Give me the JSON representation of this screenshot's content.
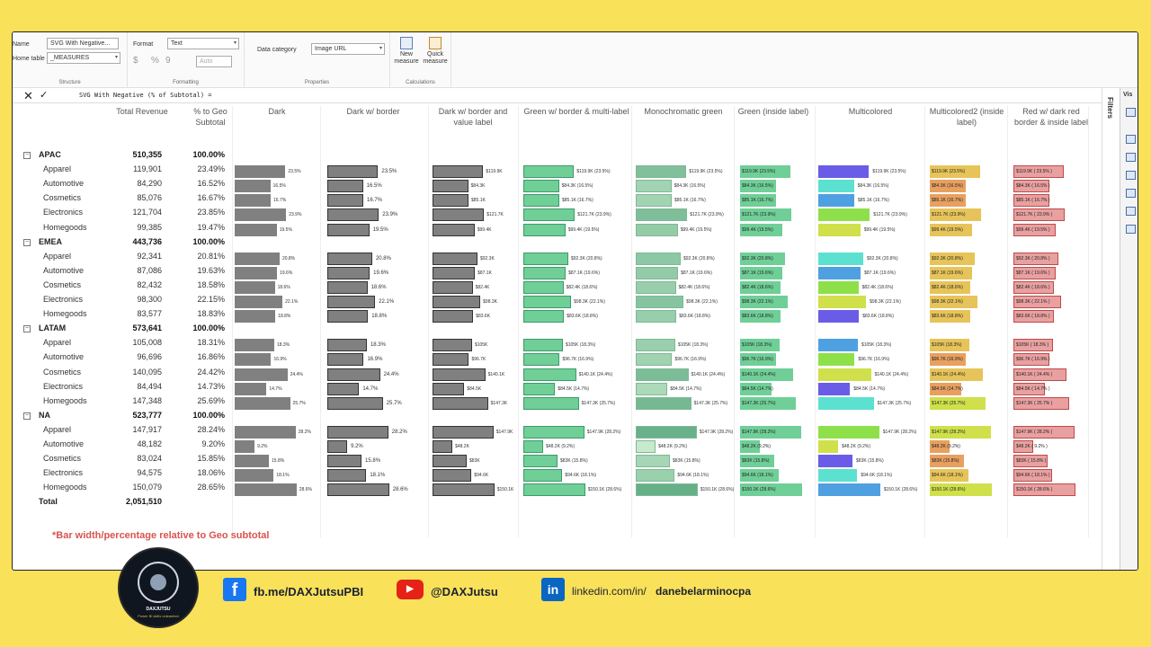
{
  "ribbon": {
    "structure": {
      "name_label": "Name",
      "name_value": "SVG With Negative...",
      "home_table_label": "Home table",
      "home_table_value": "_MEASURES",
      "caption": "Structure"
    },
    "formatting": {
      "format_label": "Format",
      "format_value": "Text",
      "currency_symbol": "$",
      "percent_symbol": "%",
      "comma_symbol": "9",
      "auto_value": "Auto",
      "caption": "Formatting"
    },
    "properties": {
      "data_category_label": "Data category",
      "data_category_value": "Image URL",
      "caption": "Properties"
    },
    "calculations": {
      "new_measure": "New measure",
      "quick_measure": "Quick measure",
      "caption": "Calculations"
    }
  },
  "formula_bar": {
    "cancel_glyph": "✕",
    "commit_glyph": "✓",
    "text": "SVG With Negative  (% of Subtotal) ="
  },
  "filters_label": "Filters",
  "visualizations_label": "Vis",
  "table": {
    "headers": {
      "total_revenue": "Total Revenue",
      "pct_geo": "% to Geo Subtotal",
      "dark": "Dark",
      "dark_border": "Dark w/ border",
      "dark_border_value": "Dark w/ border and value label",
      "green_border_multi": "Green w/ border & multi-label",
      "monochromatic_green": "Monochromatic green",
      "green_inside": "Green (inside label)",
      "multicolored": "Multicolored",
      "multicolored2": "Multicolored2 (inside label)",
      "red_dark_border": "Red w/ dark red border & inside label"
    },
    "groups": [
      {
        "geo": "APAC",
        "total": "510,355",
        "pct": "100.00%",
        "rows": [
          {
            "cat": "Apparel",
            "rev": "119,901",
            "pct": "23.49%",
            "p": 23.49,
            "k": "$119.9K"
          },
          {
            "cat": "Automotive",
            "rev": "84,290",
            "pct": "16.52%",
            "p": 16.52,
            "k": "$84.3K"
          },
          {
            "cat": "Cosmetics",
            "rev": "85,076",
            "pct": "16.67%",
            "p": 16.67,
            "k": "$85.1K"
          },
          {
            "cat": "Electronics",
            "rev": "121,704",
            "pct": "23.85%",
            "p": 23.85,
            "k": "$121.7K"
          },
          {
            "cat": "Homegoods",
            "rev": "99,385",
            "pct": "19.47%",
            "p": 19.47,
            "k": "$99.4K"
          }
        ]
      },
      {
        "geo": "EMEA",
        "total": "443,736",
        "pct": "100.00%",
        "rows": [
          {
            "cat": "Apparel",
            "rev": "92,341",
            "pct": "20.81%",
            "p": 20.81,
            "k": "$92.3K"
          },
          {
            "cat": "Automotive",
            "rev": "87,086",
            "pct": "19.63%",
            "p": 19.63,
            "k": "$87.1K"
          },
          {
            "cat": "Cosmetics",
            "rev": "82,432",
            "pct": "18.58%",
            "p": 18.58,
            "k": "$82.4K"
          },
          {
            "cat": "Electronics",
            "rev": "98,300",
            "pct": "22.15%",
            "p": 22.15,
            "k": "$98.3K"
          },
          {
            "cat": "Homegoods",
            "rev": "83,577",
            "pct": "18.83%",
            "p": 18.83,
            "k": "$83.6K"
          }
        ]
      },
      {
        "geo": "LATAM",
        "total": "573,641",
        "pct": "100.00%",
        "rows": [
          {
            "cat": "Apparel",
            "rev": "105,008",
            "pct": "18.31%",
            "p": 18.31,
            "k": "$105K"
          },
          {
            "cat": "Automotive",
            "rev": "96,696",
            "pct": "16.86%",
            "p": 16.86,
            "k": "$96.7K"
          },
          {
            "cat": "Cosmetics",
            "rev": "140,095",
            "pct": "24.42%",
            "p": 24.42,
            "k": "$140.1K"
          },
          {
            "cat": "Electronics",
            "rev": "84,494",
            "pct": "14.73%",
            "p": 14.73,
            "k": "$84.5K"
          },
          {
            "cat": "Homegoods",
            "rev": "147,348",
            "pct": "25.69%",
            "p": 25.69,
            "k": "$147.3K"
          }
        ]
      },
      {
        "geo": "NA",
        "total": "523,777",
        "pct": "100.00%",
        "rows": [
          {
            "cat": "Apparel",
            "rev": "147,917",
            "pct": "28.24%",
            "p": 28.24,
            "k": "$147.9K"
          },
          {
            "cat": "Automotive",
            "rev": "48,182",
            "pct": "9.20%",
            "p": 9.2,
            "k": "$48.2K"
          },
          {
            "cat": "Cosmetics",
            "rev": "83,024",
            "pct": "15.85%",
            "p": 15.85,
            "k": "$83K"
          },
          {
            "cat": "Electronics",
            "rev": "94,575",
            "pct": "18.06%",
            "p": 18.06,
            "k": "$94.6K"
          },
          {
            "cat": "Homegoods",
            "rev": "150,079",
            "pct": "28.65%",
            "p": 28.65,
            "k": "$150.1K"
          }
        ]
      }
    ],
    "total_label": "Total",
    "grand_total": "2,051,510"
  },
  "note": "*Bar width/percentage relative to Geo subtotal",
  "colors": {
    "dark": "#808080",
    "green": "#6fcf97",
    "mono_green_dark": "#5fb88a",
    "red_fill": "#e8a0a0",
    "red_border": "#c04a4a",
    "yellow": "#e7c45a",
    "multicolor": [
      "#6b5ce7",
      "#5ce0d0",
      "#4fa0e0",
      "#8ee04a",
      "#cfe04a"
    ]
  },
  "footer": {
    "logo_text": "DAXJUTSU",
    "logo_subtext": "Power BI skills unleashed",
    "facebook": "fb.me/DAXJutsuPBI",
    "youtube": "@DAXJutsu",
    "linkedin_prefix": "linkedin.com/in/",
    "linkedin_handle": "danebelarminocpa"
  }
}
